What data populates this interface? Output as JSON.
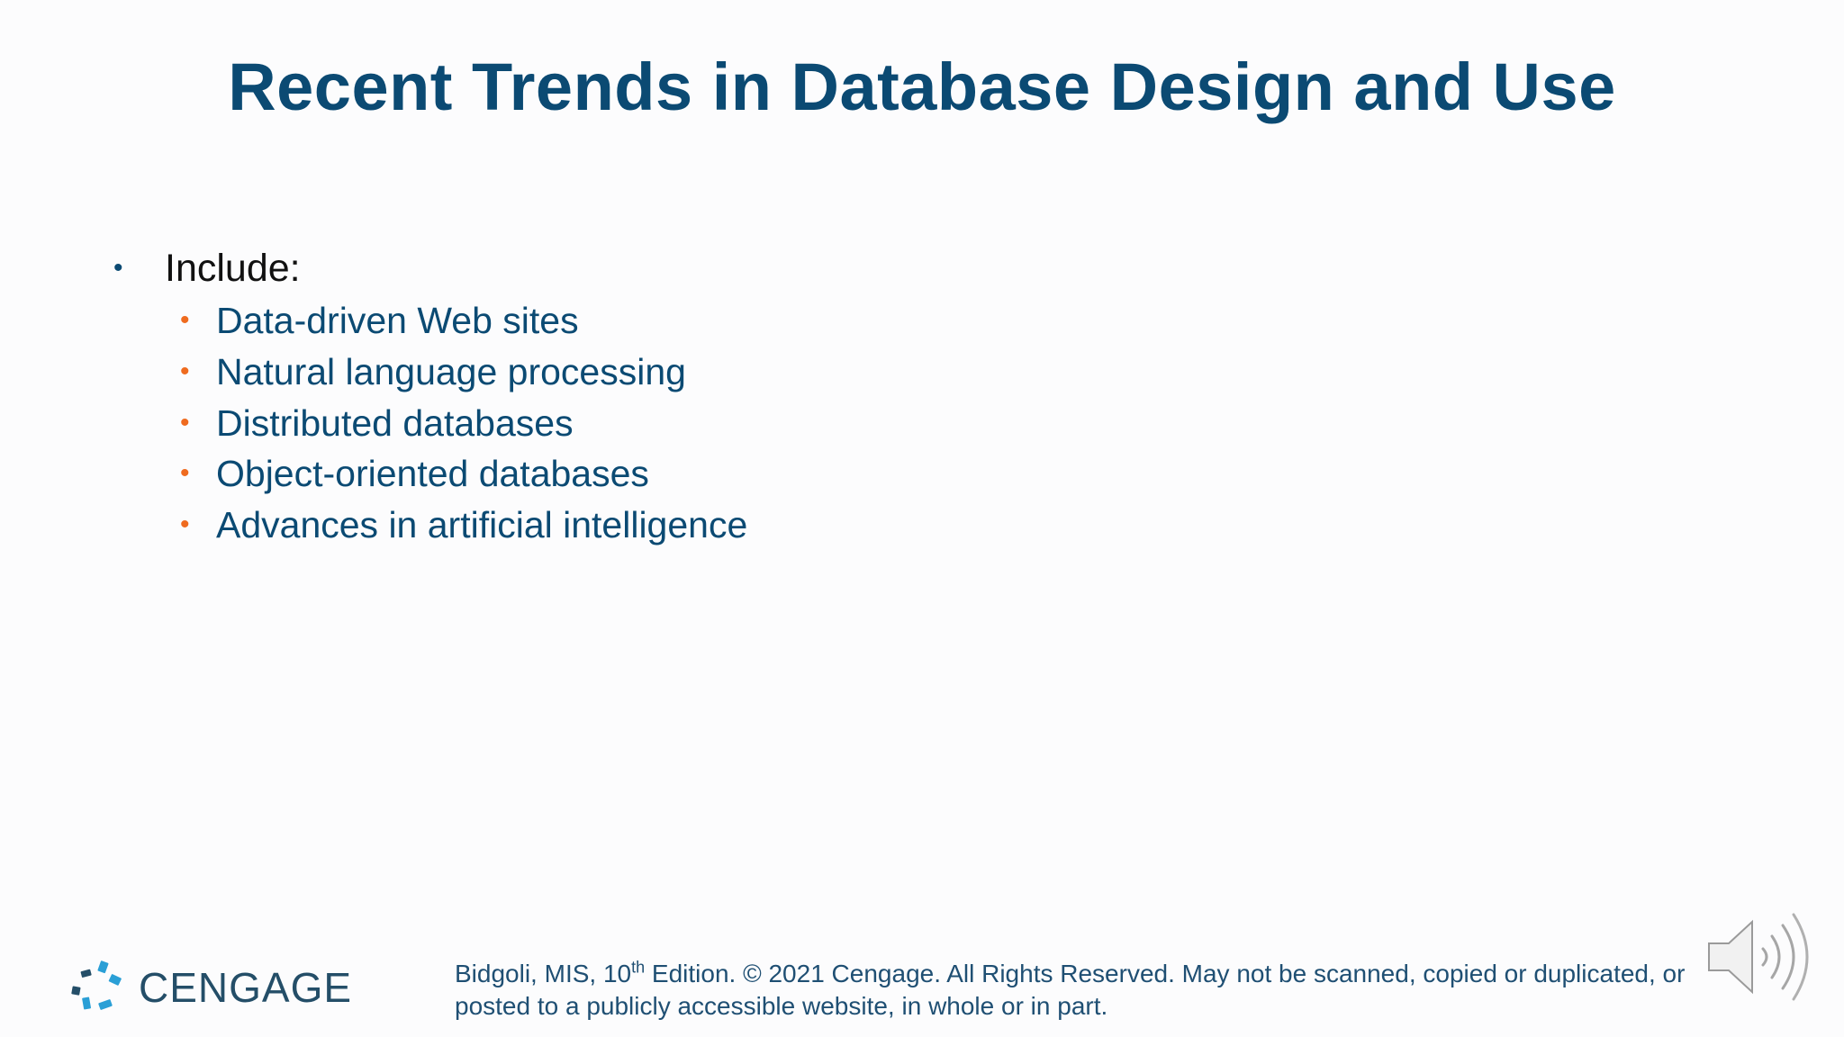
{
  "slide": {
    "title": "Recent Trends in Database Design and Use",
    "bullet_glyph": "•",
    "level1_items": [
      {
        "label": "Include:"
      }
    ],
    "level2_items": [
      {
        "label": "Data-driven Web sites"
      },
      {
        "label": "Natural language processing"
      },
      {
        "label": "Distributed databases"
      },
      {
        "label": "Object-oriented databases"
      },
      {
        "label": "Advances in artificial intelligence"
      }
    ]
  },
  "footer": {
    "logo_text": "CENGAGE",
    "citation_before_sup": "Bidgoli, MIS, 10",
    "citation_sup": "th",
    "citation_after_sup": " Edition. © 2021 Cengage. All Rights Reserved. May not be scanned, copied or duplicated, or",
    "citation_line2": "posted to a publicly accessible website, in whole or in part."
  },
  "audio": {
    "icon": "speaker-icon"
  },
  "colors": {
    "title": "#0b4a73",
    "accent_bullet": "#ef6b1f",
    "level1_bullet": "#0b4a73",
    "logo_blue": "#2a9fd6",
    "logo_dark": "#244e68"
  }
}
